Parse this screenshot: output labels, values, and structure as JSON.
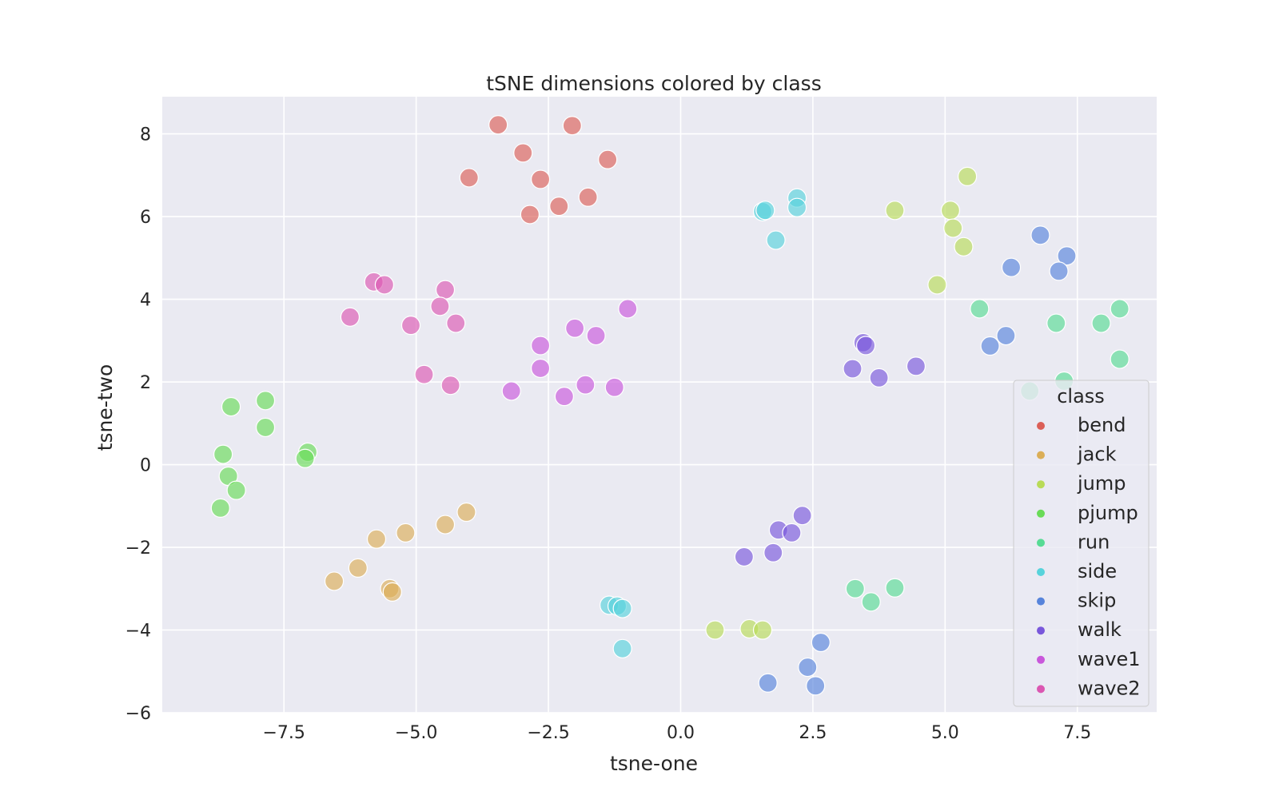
{
  "chart_data": {
    "type": "scatter",
    "title": "tSNE dimensions colored by class",
    "xlabel": "tsne-one",
    "ylabel": "tsne-two",
    "xlim": [
      -9.8,
      9.0
    ],
    "ylim": [
      -6.0,
      8.9
    ],
    "xticks": [
      -7.5,
      -5.0,
      -2.5,
      0.0,
      2.5,
      5.0,
      7.5
    ],
    "yticks": [
      -6,
      -4,
      -2,
      0,
      2,
      4,
      6,
      8
    ],
    "xtick_labels": [
      "−7.5",
      "−5.0",
      "−2.5",
      "0.0",
      "2.5",
      "5.0",
      "7.5"
    ],
    "ytick_labels": [
      "−6",
      "−4",
      "−2",
      "0",
      "2",
      "4",
      "6",
      "8"
    ],
    "grid": true,
    "legend_placement": "lower-right",
    "legend_title": "class",
    "background_color": "#eaeaf2",
    "series": [
      {
        "name": "bend",
        "color": "#db5f57",
        "points": [
          [
            -3.45,
            8.22
          ],
          [
            -2.05,
            8.2
          ],
          [
            -2.98,
            7.54
          ],
          [
            -1.38,
            7.38
          ],
          [
            -4.0,
            6.94
          ],
          [
            -2.65,
            6.9
          ],
          [
            -1.75,
            6.47
          ],
          [
            -2.3,
            6.25
          ],
          [
            -2.85,
            6.05
          ]
        ]
      },
      {
        "name": "jack",
        "color": "#dbae57",
        "points": [
          [
            -4.05,
            -1.15
          ],
          [
            -4.45,
            -1.45
          ],
          [
            -5.2,
            -1.65
          ],
          [
            -5.75,
            -1.8
          ],
          [
            -6.1,
            -2.5
          ],
          [
            -6.55,
            -2.82
          ],
          [
            -5.5,
            -3.0
          ],
          [
            -5.45,
            -3.08
          ]
        ]
      },
      {
        "name": "jump",
        "color": "#b9db57",
        "points": [
          [
            5.42,
            6.97
          ],
          [
            4.05,
            6.15
          ],
          [
            5.1,
            6.15
          ],
          [
            5.15,
            5.72
          ],
          [
            5.35,
            5.27
          ],
          [
            4.85,
            4.35
          ],
          [
            0.65,
            -4.0
          ],
          [
            1.3,
            -3.97
          ],
          [
            1.55,
            -4.0
          ]
        ]
      },
      {
        "name": "pjump",
        "color": "#69db57",
        "points": [
          [
            -8.5,
            1.4
          ],
          [
            -7.85,
            1.55
          ],
          [
            -7.85,
            0.9
          ],
          [
            -8.65,
            0.25
          ],
          [
            -7.05,
            0.3
          ],
          [
            -7.1,
            0.15
          ],
          [
            -8.55,
            -0.28
          ],
          [
            -8.4,
            -0.62
          ],
          [
            -8.7,
            -1.05
          ]
        ]
      },
      {
        "name": "run",
        "color": "#57db94",
        "points": [
          [
            5.65,
            3.77
          ],
          [
            7.1,
            3.42
          ],
          [
            7.95,
            3.42
          ],
          [
            8.3,
            3.77
          ],
          [
            8.3,
            2.55
          ],
          [
            7.25,
            2.02
          ],
          [
            6.6,
            1.78
          ],
          [
            3.3,
            -3.0
          ],
          [
            4.05,
            -2.98
          ],
          [
            3.6,
            -3.32
          ]
        ]
      },
      {
        "name": "side",
        "color": "#57d3db",
        "points": [
          [
            1.55,
            6.12
          ],
          [
            1.6,
            6.15
          ],
          [
            2.2,
            6.45
          ],
          [
            2.2,
            6.22
          ],
          [
            1.8,
            5.43
          ],
          [
            -1.35,
            -3.4
          ],
          [
            -1.2,
            -3.42
          ],
          [
            -1.1,
            -3.48
          ],
          [
            -1.1,
            -4.45
          ]
        ]
      },
      {
        "name": "skip",
        "color": "#5784db",
        "points": [
          [
            6.8,
            5.55
          ],
          [
            7.3,
            5.05
          ],
          [
            6.25,
            4.77
          ],
          [
            7.15,
            4.68
          ],
          [
            6.15,
            3.12
          ],
          [
            5.85,
            2.87
          ],
          [
            2.65,
            -4.3
          ],
          [
            2.4,
            -4.9
          ],
          [
            1.65,
            -5.28
          ],
          [
            2.55,
            -5.35
          ]
        ]
      },
      {
        "name": "walk",
        "color": "#7957db",
        "points": [
          [
            3.45,
            2.95
          ],
          [
            3.5,
            2.88
          ],
          [
            3.25,
            2.32
          ],
          [
            3.75,
            2.1
          ],
          [
            4.45,
            2.38
          ],
          [
            2.3,
            -1.23
          ],
          [
            1.85,
            -1.58
          ],
          [
            2.1,
            -1.65
          ],
          [
            1.75,
            -2.13
          ],
          [
            1.2,
            -2.23
          ]
        ]
      },
      {
        "name": "wave1",
        "color": "#c957db",
        "points": [
          [
            -1.0,
            3.77
          ],
          [
            -2.0,
            3.3
          ],
          [
            -1.6,
            3.12
          ],
          [
            -2.65,
            2.88
          ],
          [
            -2.65,
            2.33
          ],
          [
            -1.8,
            1.93
          ],
          [
            -1.25,
            1.87
          ],
          [
            -3.2,
            1.78
          ],
          [
            -2.2,
            1.65
          ]
        ]
      },
      {
        "name": "wave2",
        "color": "#db57b2",
        "points": [
          [
            -5.8,
            4.42
          ],
          [
            -5.6,
            4.35
          ],
          [
            -4.45,
            4.23
          ],
          [
            -4.55,
            3.83
          ],
          [
            -6.25,
            3.57
          ],
          [
            -5.1,
            3.37
          ],
          [
            -4.25,
            3.42
          ],
          [
            -4.85,
            2.18
          ],
          [
            -4.35,
            1.92
          ]
        ]
      }
    ]
  }
}
